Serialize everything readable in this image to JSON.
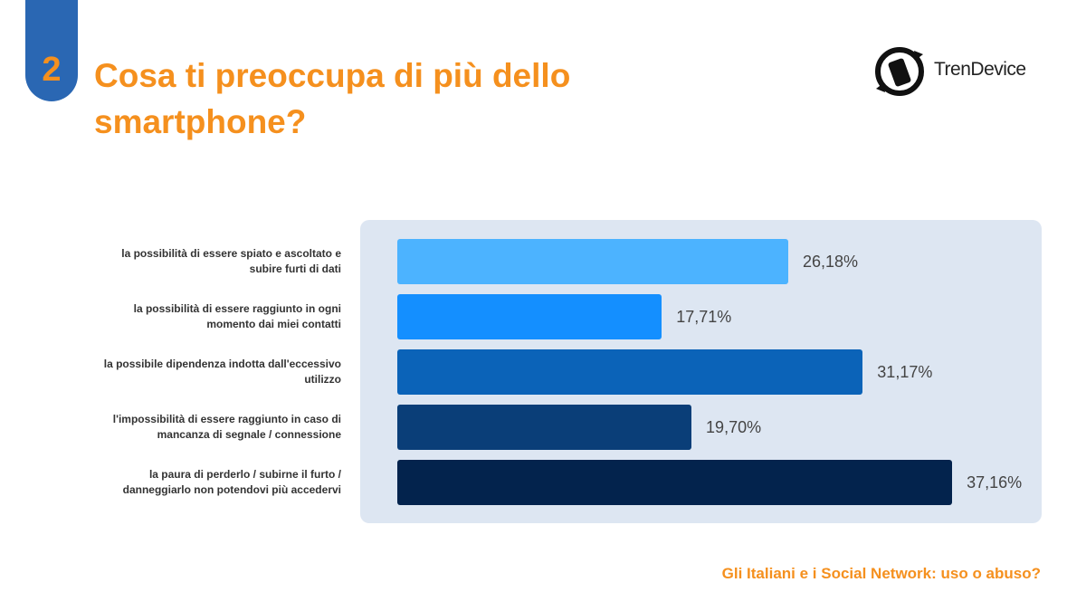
{
  "badge": "2",
  "brand": "TrenDevice",
  "footer": "Gli Italiani e i Social Network: uso o abuso?",
  "chart_data": {
    "type": "bar",
    "orientation": "horizontal",
    "title": "Cosa ti preoccupa di più dello smartphone?",
    "categories": [
      "la possibilità di essere spiato e ascoltato e subire furti di dati",
      "la possibilità di essere raggiunto in ogni momento dai miei contatti",
      "la possibile dipendenza indotta dall'eccessivo utilizzo",
      "l'impossibilità di essere raggiunto in caso di mancanza di segnale / connessione",
      "la paura di perderlo / subirne il furto / danneggiarlo non potendovi più accedervi"
    ],
    "values": [
      26.18,
      17.71,
      31.17,
      19.7,
      37.16
    ],
    "value_labels": [
      "26,18%",
      "17,71%",
      "31,17%",
      "19,70%",
      "37,16%"
    ],
    "colors": [
      "#4cb3ff",
      "#148fff",
      "#0b63b8",
      "#0a3e78",
      "#03234d"
    ],
    "xlim": [
      0,
      40
    ]
  }
}
